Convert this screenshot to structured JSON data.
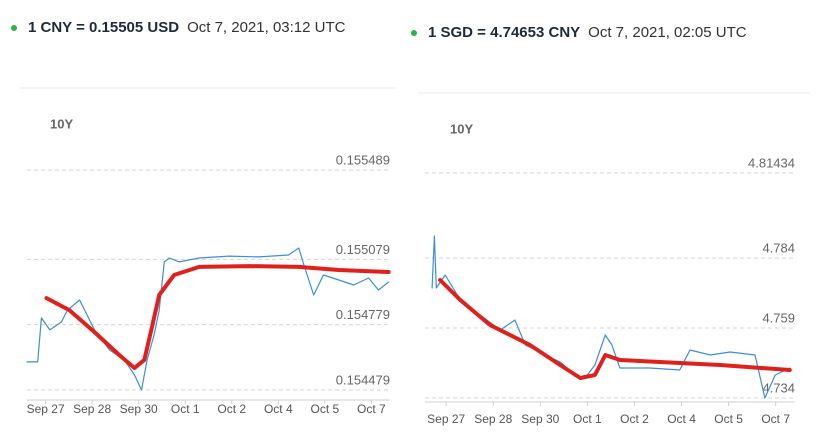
{
  "chart_data": [
    {
      "type": "line",
      "title": "1 CNY = 0.15505 USD",
      "subtitle": "Oct 7, 2021, 03:12 UTC",
      "range_label": "10Y",
      "xlim": [
        -0.4,
        7.4
      ],
      "ylim": [
        0.154433,
        0.155581
      ],
      "xticks": [
        {
          "value": 0,
          "label": "Sep 27"
        },
        {
          "value": 1,
          "label": "Sep 28"
        },
        {
          "value": 2,
          "label": "Sep 30"
        },
        {
          "value": 3,
          "label": "Oct 1"
        },
        {
          "value": 4,
          "label": "Oct 2"
        },
        {
          "value": 5,
          "label": "Oct 4"
        },
        {
          "value": 6,
          "label": "Oct 5"
        },
        {
          "value": 7,
          "label": "Oct 7"
        }
      ],
      "yticks": [
        0.154479,
        0.154779,
        0.155079,
        0.155489
      ],
      "grid": true,
      "series": [
        {
          "color": "#3b8fd9",
          "x": [
            -0.4,
            -0.17,
            -0.09,
            0.09,
            0.34,
            0.47,
            0.73,
            1.05,
            1.37,
            1.69,
            1.91,
            2.06,
            2.18,
            2.33,
            2.44,
            2.55,
            2.66,
            2.87,
            3.3,
            3.94,
            4.58,
            5.22,
            5.44,
            5.55,
            5.76,
            5.97,
            6.3,
            6.62,
            6.94,
            7.15,
            7.37
          ],
          "values": [
            0.154608,
            0.154608,
            0.15481,
            0.154755,
            0.154791,
            0.154846,
            0.154892,
            0.154755,
            0.154663,
            0.154617,
            0.154548,
            0.154479,
            0.154617,
            0.154732,
            0.154846,
            0.155067,
            0.155085,
            0.155067,
            0.155085,
            0.155094,
            0.15509,
            0.155099,
            0.155131,
            0.155053,
            0.154915,
            0.155007,
            0.154984,
            0.154961,
            0.154993,
            0.154938,
            0.154975
          ]
        },
        {
          "color": "#e0201b",
          "x": [
            0.02,
            0.51,
            1.05,
            1.58,
            1.91,
            2.12,
            2.27,
            2.44,
            2.76,
            3.3,
            4.37,
            5.44,
            6.3,
            7.37
          ],
          "values": [
            0.154901,
            0.154846,
            0.154745,
            0.15464,
            0.15458,
            0.154617,
            0.154755,
            0.154915,
            0.155007,
            0.155044,
            0.155048,
            0.155044,
            0.15503,
            0.155021
          ]
        }
      ]
    },
    {
      "type": "line",
      "title": "1 SGD = 4.74653 CNY",
      "subtitle": "Oct 7, 2021, 02:05 UTC",
      "range_label": "10Y",
      "xlim": [
        -0.45,
        7.41
      ],
      "ylim": [
        4.73259,
        4.82256
      ],
      "xticks": [
        {
          "value": 0,
          "label": "Sep 27"
        },
        {
          "value": 1,
          "label": "Sep 28"
        },
        {
          "value": 2,
          "label": "Sep 30"
        },
        {
          "value": 3,
          "label": "Oct 1"
        },
        {
          "value": 4,
          "label": "Oct 2"
        },
        {
          "value": 5,
          "label": "Oct 4"
        },
        {
          "value": 6,
          "label": "Oct 5"
        },
        {
          "value": 7,
          "label": "Oct 7"
        }
      ],
      "yticks": [
        4.734,
        4.759,
        4.784,
        4.81434
      ],
      "grid": true,
      "series": [
        {
          "color": "#3b8fd9",
          "x": [
            -0.3,
            -0.25,
            -0.21,
            -0.02,
            0.3,
            0.72,
            1.15,
            1.46,
            1.68,
            2.1,
            2.42,
            2.74,
            2.95,
            3.16,
            3.38,
            3.52,
            3.69,
            4.33,
            4.96,
            5.18,
            5.61,
            6.03,
            6.56,
            6.77,
            6.99,
            7.3
          ],
          "values": [
            4.77329,
            4.79185,
            4.77329,
            4.77793,
            4.76901,
            4.76365,
            4.7583,
            4.76187,
            4.75294,
            4.74937,
            4.74687,
            4.74223,
            4.74116,
            4.7458,
            4.75651,
            4.75294,
            4.74473,
            4.74473,
            4.74402,
            4.75116,
            4.74937,
            4.75044,
            4.74937,
            4.73402,
            4.74223,
            4.74473
          ]
        },
        {
          "color": "#e0201b",
          "x": [
            -0.13,
            0.3,
            0.93,
            1.78,
            2.42,
            2.85,
            3.16,
            3.38,
            3.69,
            4.54,
            5.82,
            7.3
          ],
          "values": [
            4.77615,
            4.76901,
            4.76008,
            4.75294,
            4.7458,
            4.74116,
            4.74223,
            4.74937,
            4.74759,
            4.74687,
            4.7458,
            4.74402
          ]
        }
      ]
    }
  ]
}
